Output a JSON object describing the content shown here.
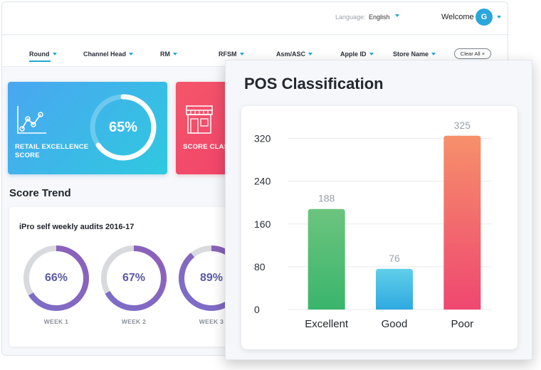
{
  "header": {
    "language_label": "Language:",
    "language_value": "English",
    "welcome": "Welcome",
    "avatar_initial": "G"
  },
  "filters": {
    "items": [
      "Round",
      "Channel Head",
      "RM",
      "RFSM",
      "Asm/ASC",
      "Apple ID",
      "Store Name"
    ],
    "clear_all": "Clear All ×"
  },
  "cards": {
    "retail": {
      "label": "RETAIL EXCELLENCE SCORE",
      "value": "65%",
      "fraction": 0.65
    },
    "score": {
      "label": "SCORE CLASSIFICATI"
    }
  },
  "score_trend": {
    "heading": "Score Trend",
    "card_title": "iPro self weekly audits 2016-17",
    "weeks": [
      {
        "label": "WEEK 1",
        "value": "66%",
        "fraction": 0.66
      },
      {
        "label": "WEEK 2",
        "value": "67%",
        "fraction": 0.67
      },
      {
        "label": "WEEK 3",
        "value": "89%",
        "fraction": 0.89
      }
    ]
  },
  "popup": {
    "title": "POS Classification"
  },
  "colors": {
    "accent": "#22a7d8",
    "excellent": [
      "#6cc47e",
      "#3ab56c"
    ],
    "good": [
      "#5fcfe9",
      "#2fa9e0"
    ],
    "poor": [
      "#f6906a",
      "#ef4771"
    ],
    "ring": [
      "#7b6fc9",
      "#8e5fb8"
    ]
  },
  "chart_data": {
    "type": "bar",
    "title": "POS Classification",
    "categories": [
      "Excellent",
      "Good",
      "Poor"
    ],
    "values": [
      188,
      76,
      325
    ],
    "yticks": [
      0,
      80,
      160,
      240,
      320
    ],
    "ylim": [
      0,
      330
    ],
    "grid": true,
    "data_labels": true
  }
}
